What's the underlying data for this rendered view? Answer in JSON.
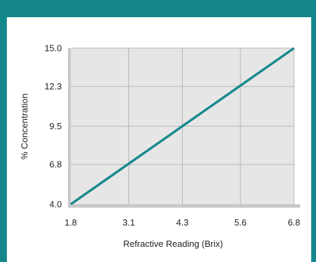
{
  "chart_data": {
    "type": "line",
    "title": "",
    "xlabel": "Refractive Reading (Brix)",
    "ylabel": "% Concentration",
    "x_ticks": [
      "1.8",
      "3.1",
      "4.3",
      "5.6",
      "6.8"
    ],
    "y_ticks": [
      "4.0",
      "6.8",
      "9.5",
      "12.3",
      "15.0"
    ],
    "xlim": [
      1.8,
      6.8
    ],
    "ylim": [
      4.0,
      15.0
    ],
    "grid": true,
    "series": [
      {
        "x": [
          1.8,
          6.8
        ],
        "y": [
          4.0,
          15.0
        ],
        "color": "#17898e"
      }
    ],
    "colors": {
      "frame": "#13878c",
      "plot_bg": "#e6e6e6",
      "grid": "#b5b5b5",
      "axis": "#c8c8c8"
    }
  }
}
